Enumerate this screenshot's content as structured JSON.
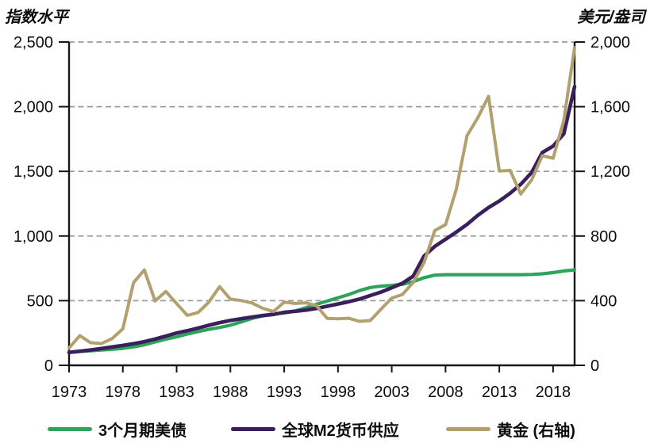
{
  "left_axis_title": "指数水平",
  "right_axis_title": "美元/盎司",
  "chart_data": {
    "type": "line",
    "grid": {
      "horizontal": true,
      "style": "dashed",
      "color": "#9c9c9c"
    },
    "legend_position": "bottom",
    "left_axis": {
      "label": "指数水平",
      "range": [
        0,
        2500
      ],
      "tick_values": [
        0,
        500,
        1000,
        1500,
        2000,
        2500
      ],
      "tick_labels": [
        "0",
        "500",
        "1,000",
        "1,500",
        "2,000",
        "2,500"
      ]
    },
    "right_axis": {
      "label": "美元/盎司",
      "range": [
        0,
        2000
      ],
      "tick_values": [
        0,
        400,
        800,
        1200,
        1600,
        2000
      ],
      "tick_labels": [
        "0",
        "400",
        "800",
        "1,200",
        "1,600",
        "2,000"
      ]
    },
    "x_ticks": {
      "values": [
        1973,
        1978,
        1983,
        1988,
        1993,
        1998,
        2003,
        2008,
        2013,
        2018
      ],
      "labels": [
        "1973",
        "1978",
        "1983",
        "1988",
        "1993",
        "1998",
        "2003",
        "2008",
        "2013",
        "2018"
      ]
    },
    "x": [
      1973,
      1974,
      1975,
      1976,
      1977,
      1978,
      1979,
      1980,
      1981,
      1982,
      1983,
      1984,
      1985,
      1986,
      1987,
      1988,
      1989,
      1990,
      1991,
      1992,
      1993,
      1994,
      1995,
      1996,
      1997,
      1998,
      1999,
      2000,
      2001,
      2002,
      2003,
      2004,
      2005,
      2006,
      2007,
      2008,
      2009,
      2010,
      2011,
      2012,
      2013,
      2014,
      2015,
      2016,
      2017,
      2018,
      2019,
      2020
    ],
    "series": [
      {
        "id": "treasury-3m",
        "name": "3个月期美债",
        "axis": "left",
        "color": "#2ea45a",
        "width": 4.2,
        "values": [
          100,
          107,
          113,
          118,
          124,
          131,
          143,
          159,
          181,
          202,
          220,
          242,
          261,
          278,
          293,
          310,
          336,
          362,
          383,
          397,
          405,
          420,
          445,
          472,
          497,
          522,
          547,
          578,
          602,
          612,
          618,
          626,
          647,
          678,
          697,
          701,
          701,
          701,
          701,
          701,
          701,
          701,
          701,
          703,
          708,
          717,
          730,
          738
        ]
      },
      {
        "id": "global-m2",
        "name": "全球M2货币供应",
        "axis": "left",
        "color": "#3a1f5d",
        "width": 4.6,
        "values": [
          100,
          109,
          119,
          130,
          142,
          154,
          167,
          183,
          203,
          226,
          250,
          268,
          288,
          310,
          330,
          347,
          360,
          373,
          385,
          394,
          410,
          418,
          427,
          440,
          457,
          474,
          492,
          512,
          540,
          566,
          600,
          635,
          690,
          845,
          920,
          975,
          1030,
          1090,
          1160,
          1220,
          1270,
          1330,
          1400,
          1490,
          1645,
          1695,
          1790,
          2155
        ]
      },
      {
        "id": "gold",
        "name": "黄金 (右轴)",
        "axis": "right",
        "color": "#b2a06f",
        "width": 4.0,
        "values": [
          107,
          184,
          140,
          135,
          165,
          226,
          512,
          590,
          398,
          457,
          382,
          309,
          327,
          391,
          487,
          410,
          401,
          386,
          353,
          333,
          391,
          383,
          387,
          369,
          290,
          288,
          291,
          272,
          277,
          347,
          416,
          438,
          513,
          636,
          834,
          870,
          1088,
          1421,
          1531,
          1664,
          1202,
          1206,
          1060,
          1146,
          1297,
          1281,
          1515,
          1965
        ]
      }
    ]
  }
}
